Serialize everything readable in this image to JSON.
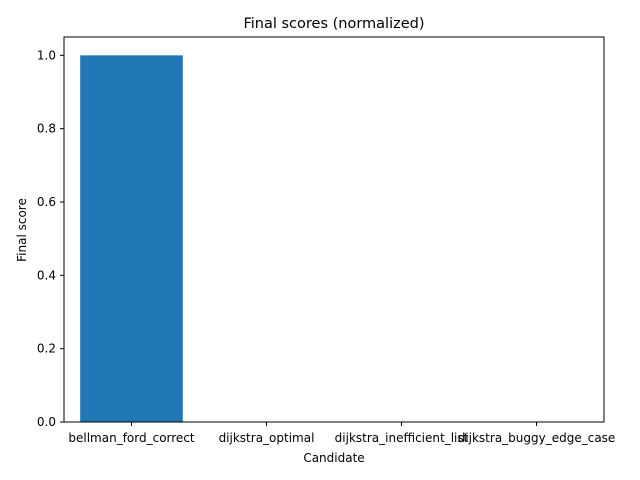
{
  "chart_data": {
    "type": "bar",
    "title": "Final scores (normalized)",
    "xlabel": "Candidate",
    "ylabel": "Final score",
    "categories": [
      "bellman_ford_correct",
      "dijkstra_optimal",
      "dijkstra_inefficient_list",
      "dijkstra_buggy_edge_case"
    ],
    "values": [
      1.0,
      0.0,
      0.0,
      0.0
    ],
    "ylim": [
      0,
      1.05
    ],
    "yticks": [
      "0.0",
      "0.2",
      "0.4",
      "0.6",
      "0.8",
      "1.0"
    ],
    "grid": false,
    "bar_color": "#1f77b4"
  }
}
